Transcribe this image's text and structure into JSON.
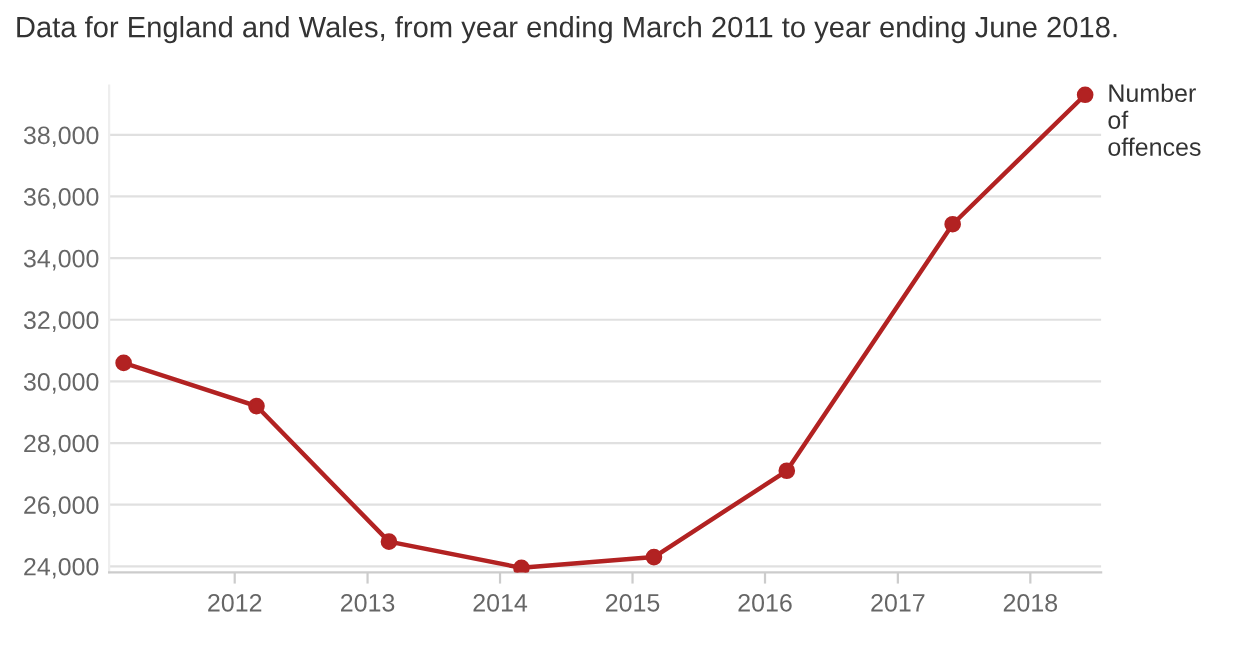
{
  "chart_data": {
    "type": "line",
    "title": "Data for England and Wales, from year ending March 2011 to year ending June 2018.",
    "x": [
      "2011-03",
      "2012-03",
      "2013-03",
      "2014-03",
      "2015-03",
      "2016-03",
      "2017-06",
      "2018-06"
    ],
    "series": [
      {
        "name": "Number of offences",
        "color": "#b22222",
        "values": [
          30600,
          29200,
          24800,
          23950,
          24300,
          27100,
          35100,
          39300
        ]
      }
    ],
    "xlim": [
      "2011-01-20",
      "2018-07-15"
    ],
    "xticks": [
      {
        "value": "2012-01-01",
        "label": "2012"
      },
      {
        "value": "2013-01-01",
        "label": "2013"
      },
      {
        "value": "2014-01-01",
        "label": "2014"
      },
      {
        "value": "2015-01-01",
        "label": "2015"
      },
      {
        "value": "2016-01-01",
        "label": "2016"
      },
      {
        "value": "2017-01-01",
        "label": "2017"
      },
      {
        "value": "2018-01-01",
        "label": "2018"
      }
    ],
    "ylim": [
      23800,
      39600
    ],
    "yticks": [
      {
        "value": 24000,
        "label": "24,000"
      },
      {
        "value": 26000,
        "label": "26,000"
      },
      {
        "value": 28000,
        "label": "28,000"
      },
      {
        "value": 30000,
        "label": "30,000"
      },
      {
        "value": 32000,
        "label": "32,000"
      },
      {
        "value": 34000,
        "label": "34,000"
      },
      {
        "value": 36000,
        "label": "36,000"
      },
      {
        "value": 38000,
        "label": "38,000"
      }
    ],
    "grid": "y",
    "marker": "circle",
    "line_style": "solid"
  }
}
